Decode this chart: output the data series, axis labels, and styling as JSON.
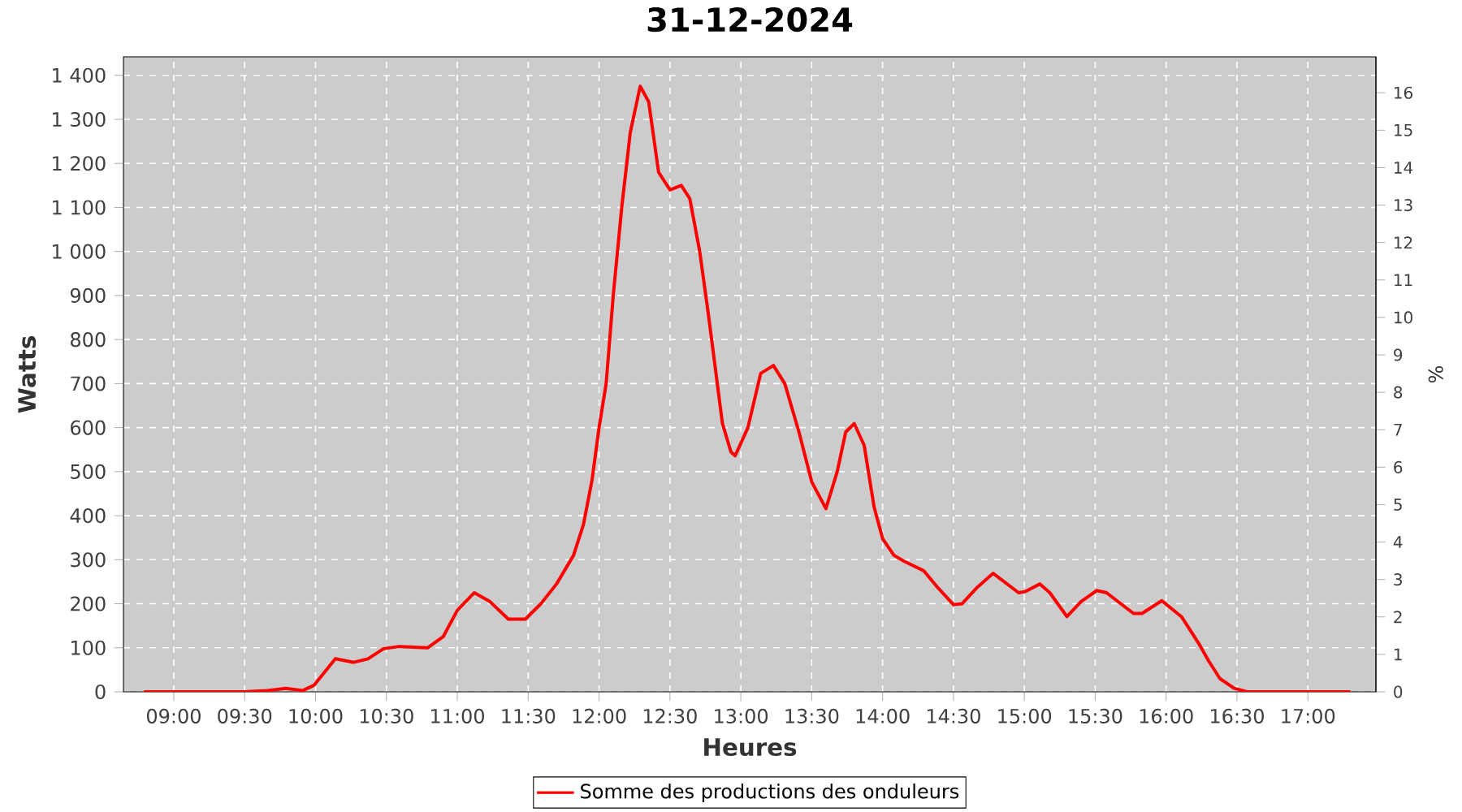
{
  "chart_data": {
    "type": "line",
    "title": "31-12-2024",
    "xlabel": "Heures",
    "ylabel": "Watts",
    "y2label": "%",
    "xlim": [
      8.645,
      17.48
    ],
    "ylim": [
      0,
      1442
    ],
    "y2lim": [
      0,
      16.96
    ],
    "xticks": [
      {
        "value": 9,
        "label": "09:00"
      },
      {
        "value": 9.5,
        "label": "09:30"
      },
      {
        "value": 10,
        "label": "10:00"
      },
      {
        "value": 10.5,
        "label": "10:30"
      },
      {
        "value": 11,
        "label": "11:00"
      },
      {
        "value": 11.5,
        "label": "11:30"
      },
      {
        "value": 12,
        "label": "12:00"
      },
      {
        "value": 12.5,
        "label": "12:30"
      },
      {
        "value": 13,
        "label": "13:00"
      },
      {
        "value": 13.5,
        "label": "13:30"
      },
      {
        "value": 14,
        "label": "14:00"
      },
      {
        "value": 14.5,
        "label": "14:30"
      },
      {
        "value": 15,
        "label": "15:00"
      },
      {
        "value": 15.5,
        "label": "15:30"
      },
      {
        "value": 16,
        "label": "16:00"
      },
      {
        "value": 16.5,
        "label": "16:30"
      },
      {
        "value": 17,
        "label": "17:00"
      }
    ],
    "yticks": [
      0,
      100,
      200,
      300,
      400,
      500,
      600,
      700,
      800,
      900,
      {
        "value": 1000,
        "label": "1 000"
      },
      {
        "value": 1100,
        "label": "1 100"
      },
      {
        "value": 1200,
        "label": "1 200"
      },
      {
        "value": 1300,
        "label": "1 300"
      },
      {
        "value": 1400,
        "label": "1 400"
      }
    ],
    "y2ticks": [
      0,
      1,
      2,
      3,
      4,
      5,
      6,
      7,
      8,
      9,
      10,
      11,
      12,
      13,
      14,
      15,
      16
    ],
    "grid": true,
    "legend": "bottom",
    "line_style": "solid",
    "series": [
      {
        "name": "Somme des productions des onduleurs",
        "color": "#ff0000",
        "x": [
          8.79,
          9.5,
          9.66,
          9.79,
          9.91,
          9.99,
          10.14,
          10.27,
          10.37,
          10.48,
          10.59,
          10.79,
          10.9,
          11.0,
          11.12,
          11.23,
          11.36,
          11.48,
          11.59,
          11.7,
          11.82,
          11.89,
          11.95,
          12.0,
          12.05,
          12.1,
          12.16,
          12.22,
          12.29,
          12.35,
          12.42,
          12.5,
          12.58,
          12.64,
          12.71,
          12.77,
          12.81,
          12.87,
          12.93,
          12.96,
          13.05,
          13.14,
          13.23,
          13.31,
          13.41,
          13.5,
          13.6,
          13.68,
          13.74,
          13.8,
          13.87,
          13.94,
          14.0,
          14.08,
          14.15,
          14.29,
          14.38,
          14.5,
          14.56,
          14.67,
          14.78,
          14.96,
          15.01,
          15.11,
          15.18,
          15.3,
          15.4,
          15.51,
          15.58,
          15.77,
          15.83,
          15.97,
          16.11,
          16.23,
          16.3,
          16.38,
          16.48,
          16.57,
          17.3
        ],
        "values": [
          0,
          0,
          3,
          8,
          3,
          15,
          75,
          67,
          75,
          98,
          103,
          100,
          125,
          185,
          225,
          205,
          165,
          165,
          200,
          245,
          310,
          380,
          480,
          600,
          700,
          900,
          1100,
          1270,
          1375,
          1340,
          1180,
          1140,
          1150,
          1120,
          1000,
          860,
          760,
          610,
          545,
          536,
          600,
          723,
          741,
          700,
          590,
          477,
          416,
          500,
          590,
          609,
          560,
          420,
          348,
          310,
          297,
          275,
          240,
          198,
          200,
          238,
          269,
          225,
          228,
          245,
          225,
          171,
          205,
          230,
          225,
          178,
          178,
          207,
          170,
          110,
          70,
          30,
          8,
          0,
          0
        ]
      }
    ]
  }
}
